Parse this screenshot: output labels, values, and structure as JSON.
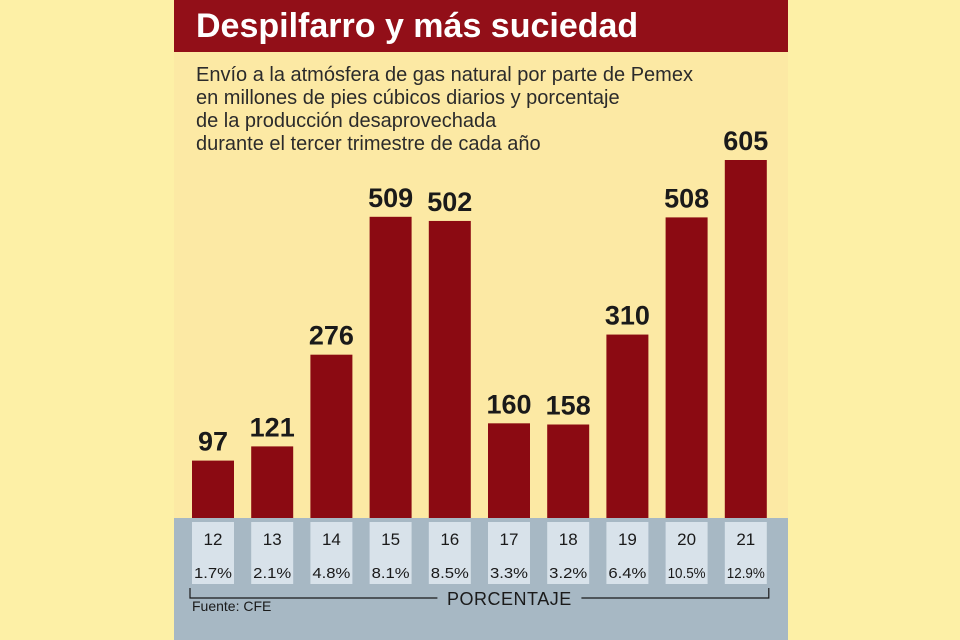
{
  "header": {
    "title": "Despilfarro y más suciedad",
    "subtitle_lines": [
      "Envío a la atmósfera de gas natural por parte de Pemex",
      "en millones de pies cúbicos diarios y porcentaje",
      "de la producción desaprovechada",
      "durante el tercer trimestre de cada año"
    ]
  },
  "chart_data": {
    "type": "bar",
    "categories": [
      "12",
      "13",
      "14",
      "15",
      "16",
      "17",
      "18",
      "19",
      "20",
      "21"
    ],
    "values": [
      97,
      121,
      276,
      509,
      502,
      160,
      158,
      310,
      508,
      605
    ],
    "percentages": [
      "1.7%",
      "2.1%",
      "4.8%",
      "8.1%",
      "8.5%",
      "3.3%",
      "3.2%",
      "6.4%",
      "10.5%",
      "12.9%"
    ],
    "percentage_label": "PORCENTAJE",
    "ylim": [
      0,
      605
    ],
    "grid": false,
    "legend": "none",
    "bar_color": "#8b0a12",
    "cell_color": "#d8e2ea"
  },
  "footer": {
    "source": "Fuente: CFE"
  }
}
